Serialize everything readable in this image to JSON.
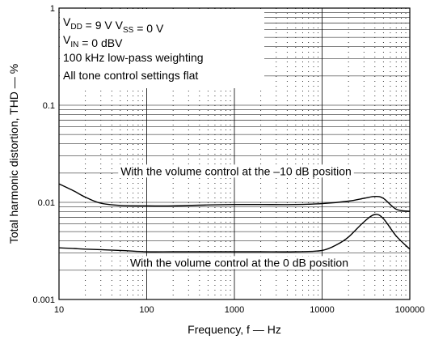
{
  "chart_data": {
    "type": "line",
    "title": "",
    "xlabel": "Frequency, f — Hz",
    "ylabel": "Total harmonic distortion, THD — %",
    "x_scale": "log",
    "y_scale": "log",
    "xlim": [
      10,
      100000
    ],
    "ylim": [
      0.001,
      1
    ],
    "x_ticks": [
      10,
      100,
      1000,
      10000,
      100000
    ],
    "x_tick_labels": [
      "10",
      "100",
      "1000",
      "10000",
      "100000"
    ],
    "y_ticks": [
      0.001,
      0.01,
      0.1,
      1
    ],
    "y_tick_labels": [
      "0.001",
      "0.01",
      "0.1",
      "1"
    ],
    "grid": true,
    "conditions": [
      {
        "parts": [
          {
            "t": "V"
          },
          {
            "t": "DD",
            "sub": true
          },
          {
            "t": " = 9 V V"
          },
          {
            "t": "SS",
            "sub": true
          },
          {
            "t": " = 0 V"
          }
        ]
      },
      {
        "parts": [
          {
            "t": "V"
          },
          {
            "t": "IN",
            "sub": true
          },
          {
            "t": " = 0 dBV"
          }
        ]
      },
      {
        "parts": [
          {
            "t": "100 kHz low-pass weighting"
          }
        ]
      },
      {
        "parts": [
          {
            "t": "All tone control settings flat"
          }
        ]
      }
    ],
    "series": [
      {
        "name": "With the volume control at the –10 dB position",
        "x": [
          10,
          15,
          20,
          30,
          50,
          100,
          200,
          500,
          1000,
          2000,
          5000,
          10000,
          20000,
          30000,
          40000,
          50000,
          70000,
          100000
        ],
        "y": [
          0.0155,
          0.013,
          0.0113,
          0.0098,
          0.0093,
          0.0092,
          0.0092,
          0.0094,
          0.0095,
          0.0095,
          0.0095,
          0.0097,
          0.0103,
          0.011,
          0.0115,
          0.011,
          0.0085,
          0.0081
        ]
      },
      {
        "name": "With the volume control at the 0 dB position",
        "x": [
          10,
          15,
          20,
          50,
          100,
          200,
          500,
          1000,
          2000,
          5000,
          10000,
          15000,
          20000,
          30000,
          40000,
          50000,
          70000,
          100000
        ],
        "y": [
          0.0034,
          0.00335,
          0.0033,
          0.0032,
          0.0031,
          0.0031,
          0.0031,
          0.0031,
          0.0031,
          0.0031,
          0.0032,
          0.0037,
          0.0044,
          0.0063,
          0.0075,
          0.0068,
          0.0045,
          0.0033
        ]
      }
    ]
  }
}
